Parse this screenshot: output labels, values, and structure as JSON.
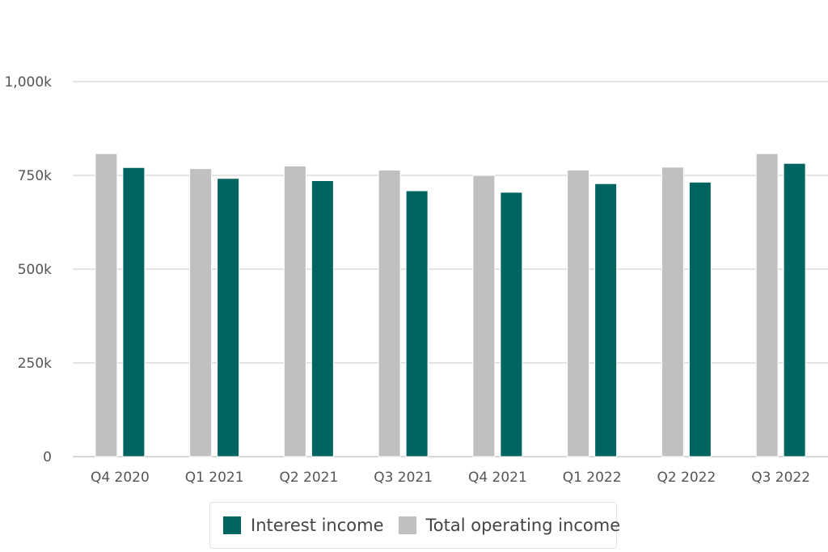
{
  "chart_data": {
    "type": "bar",
    "categories": [
      "Q4 2020",
      "Q1 2021",
      "Q2 2021",
      "Q3 2021",
      "Q4 2021",
      "Q1 2022",
      "Q2 2022",
      "Q3 2022"
    ],
    "series": [
      {
        "name": "Total operating income",
        "color": "#c0c0c0",
        "values": [
          808000,
          768000,
          775000,
          764000,
          750000,
          764000,
          772000,
          808000
        ]
      },
      {
        "name": "Interest income",
        "color": "#006461",
        "values": [
          771000,
          742000,
          736000,
          709000,
          705000,
          728000,
          732000,
          782000
        ]
      }
    ],
    "y_ticks": [
      0,
      250000,
      500000,
      750000,
      1000000
    ],
    "y_tick_labels": [
      "0",
      "250k",
      "500k",
      "750k",
      "1,000k"
    ],
    "ylim": [
      0,
      1000000
    ],
    "xlabel": "",
    "ylabel": "",
    "title": "",
    "grid": true,
    "legend_position": "bottom-center",
    "legend_order": [
      "Interest income",
      "Total operating income"
    ]
  }
}
